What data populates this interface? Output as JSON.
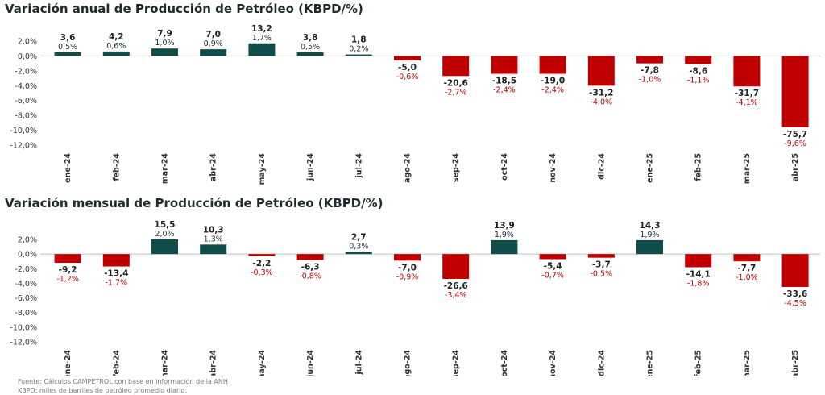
{
  "chart_data": [
    {
      "type": "bar",
      "title": "Variación anual de Producción de Petróleo (KBPD/%)",
      "categories": [
        "ene-24",
        "feb-24",
        "mar-24",
        "abr-24",
        "may-24",
        "jun-24",
        "jul-24",
        "ago-24",
        "sep-24",
        "oct-24",
        "nov-24",
        "dic-24",
        "ene-25",
        "feb-25",
        "mar-25",
        "abr-25"
      ],
      "series": [
        {
          "values": [
            0.5,
            0.6,
            1.0,
            0.9,
            1.7,
            0.5,
            0.2,
            -0.6,
            -2.7,
            -2.4,
            -2.4,
            -4.0,
            -1.0,
            -1.1,
            -4.1,
            -9.6
          ]
        }
      ],
      "value_labels": [
        "3,6",
        "4,2",
        "7,9",
        "7,0",
        "13,2",
        "3,8",
        "1,8",
        "-5,0",
        "-20,6",
        "-18,5",
        "-19,0",
        "-31,2",
        "-7,8",
        "-8,6",
        "-31,7",
        "-75,7"
      ],
      "percent_labels": [
        "0,5%",
        "0,6%",
        "1,0%",
        "0,9%",
        "1,7%",
        "0,5%",
        "0,2%",
        "-0,6%",
        "-2,7%",
        "-2,4%",
        "-2,4%",
        "-4,0%",
        "-1,0%",
        "-1,1%",
        "-4,1%",
        "-9,6%"
      ],
      "yticks": [
        "2,0%",
        "0,0%",
        "-2,0%",
        "-4,0%",
        "-6,0%",
        "-8,0%",
        "-10,0%",
        "-12,0%"
      ],
      "ylim": [
        -12,
        2
      ],
      "colors": {
        "positive": "#0f4c4a",
        "negative": "#c00000"
      }
    },
    {
      "type": "bar",
      "title": "Variación mensual de Producción de Petróleo (KBPD/%)",
      "categories": [
        "ene-24",
        "feb-24",
        "mar-24",
        "abr-24",
        "may-24",
        "jun-24",
        "jul-24",
        "ago-24",
        "sep-24",
        "oct-24",
        "nov-24",
        "dic-24",
        "ene-25",
        "feb-25",
        "mar-25",
        "abr-25"
      ],
      "series": [
        {
          "values": [
            -1.2,
            -1.7,
            2.0,
            1.3,
            -0.3,
            -0.8,
            0.3,
            -0.9,
            -3.4,
            1.9,
            -0.7,
            -0.5,
            1.9,
            -1.8,
            -1.0,
            -4.5
          ]
        }
      ],
      "value_labels": [
        "-9,2",
        "-13,4",
        "15,5",
        "10,3",
        "-2,2",
        "-6,3",
        "2,7",
        "-7,0",
        "-26,6",
        "13,9",
        "-5,4",
        "-3,7",
        "14,3",
        "-14,1",
        "-7,7",
        "-33,6"
      ],
      "percent_labels": [
        "-1,2%",
        "-1,7%",
        "2,0%",
        "1,3%",
        "-0,3%",
        "-0,8%",
        "0,3%",
        "-0,9%",
        "-3,4%",
        "1,9%",
        "-0,7%",
        "-0,5%",
        "1,9%",
        "-1,8%",
        "-1,0%",
        "-4,5%"
      ],
      "yticks": [
        "2,0%",
        "0,0%",
        "-2,0%",
        "-4,0%",
        "-6,0%",
        "-8,0%",
        "-10,0%",
        "-12,0%"
      ],
      "ylim": [
        -12,
        2
      ],
      "colors": {
        "positive": "#0f4c4a",
        "negative": "#c00000"
      }
    }
  ],
  "source": {
    "line1_prefix": "Fuente: Cálculos CAMPETROL con base en información de la ",
    "line1_link": "ANH",
    "line2": "KBPD: miles de barriles de petróleo promedio diario."
  }
}
